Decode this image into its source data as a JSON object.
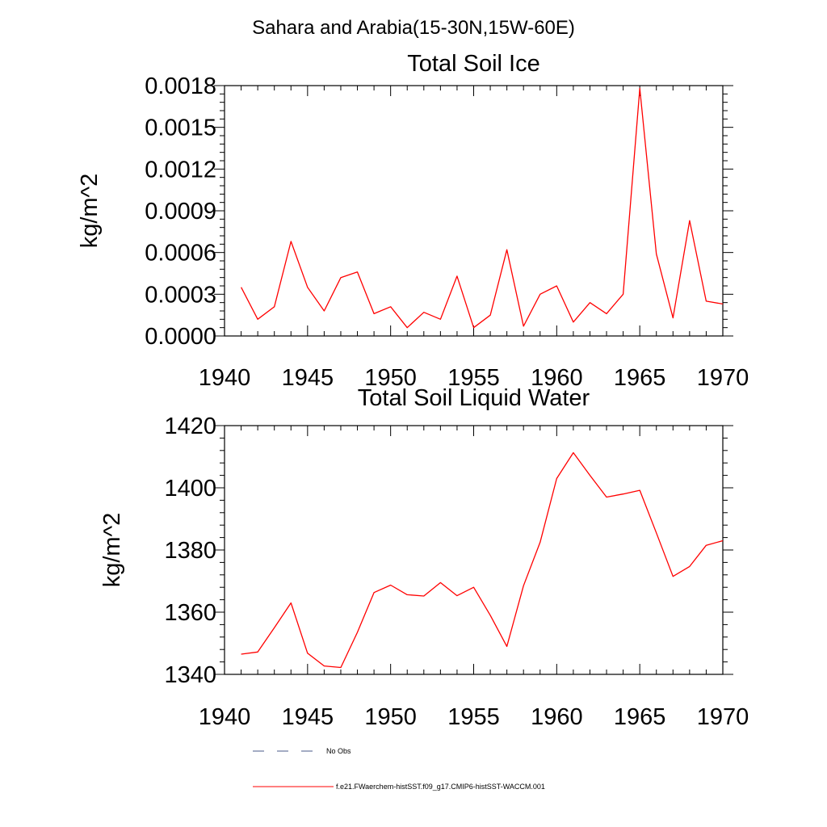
{
  "figure_title": "Sahara and Arabia(15-30N,15W-60E)",
  "legend": {
    "items": [
      {
        "label": "No Obs",
        "style": "dashed",
        "color": "#4a5a8a"
      },
      {
        "label": "f.e21.FWaerchem-histSST.f09_g17.CMIP6-histSST-WACCM.001",
        "style": "solid",
        "color": "#ff0000"
      }
    ]
  },
  "chart_data": [
    {
      "type": "line",
      "title": "Total Soil Ice",
      "xlabel": "",
      "ylabel": "kg/m^2",
      "xlim": [
        1940,
        1970
      ],
      "ylim": [
        0,
        0.0018
      ],
      "xticks": [
        "1940",
        "1945",
        "1950",
        "1955",
        "1960",
        "1965",
        "1970"
      ],
      "yticks": [
        "0.0000",
        "0.0003",
        "0.0006",
        "0.0009",
        "0.0012",
        "0.0015",
        "0.0018"
      ],
      "grid": false,
      "x": [
        1941,
        1942,
        1943,
        1944,
        1945,
        1946,
        1947,
        1948,
        1949,
        1950,
        1951,
        1952,
        1953,
        1954,
        1955,
        1956,
        1957,
        1958,
        1959,
        1960,
        1961,
        1962,
        1963,
        1964,
        1965,
        1966,
        1967,
        1968,
        1969,
        1970
      ],
      "series": [
        {
          "color": "#ff0000",
          "values": [
            0.00035,
            0.00012,
            0.00021,
            0.00068,
            0.00035,
            0.00018,
            0.00042,
            0.00046,
            0.00016,
            0.00021,
            6e-05,
            0.00017,
            0.00012,
            0.00043,
            6e-05,
            0.00015,
            0.00062,
            7e-05,
            0.0003,
            0.00036,
            0.0001,
            0.00024,
            0.00016,
            0.0003,
            0.00178,
            0.00059,
            0.00013,
            0.00083,
            0.00025,
            0.00023
          ]
        }
      ]
    },
    {
      "type": "line",
      "title": "Total Soil Liquid Water",
      "xlabel": "",
      "ylabel": "kg/m^2",
      "xlim": [
        1940,
        1970
      ],
      "ylim": [
        1340,
        1420
      ],
      "xticks": [
        "1940",
        "1945",
        "1950",
        "1955",
        "1960",
        "1965",
        "1970"
      ],
      "yticks": [
        "1340",
        "1360",
        "1380",
        "1400",
        "1420"
      ],
      "grid": false,
      "x": [
        1941,
        1942,
        1943,
        1944,
        1945,
        1946,
        1947,
        1948,
        1949,
        1950,
        1951,
        1952,
        1953,
        1954,
        1955,
        1956,
        1957,
        1958,
        1959,
        1960,
        1961,
        1962,
        1963,
        1964,
        1965,
        1966,
        1967,
        1968,
        1969,
        1970
      ],
      "series": [
        {
          "color": "#ff0000",
          "values": [
            1346.5,
            1347.2,
            1355.0,
            1363.0,
            1346.8,
            1342.7,
            1342.2,
            1353.5,
            1366.3,
            1368.7,
            1365.6,
            1365.2,
            1369.5,
            1365.3,
            1368.0,
            1359.0,
            1349.0,
            1368.5,
            1382.5,
            1403.0,
            1411.3,
            1404.0,
            1397.0,
            1398.0,
            1399.2,
            1385.5,
            1371.5,
            1374.7,
            1381.5,
            1383.0
          ]
        }
      ]
    }
  ]
}
